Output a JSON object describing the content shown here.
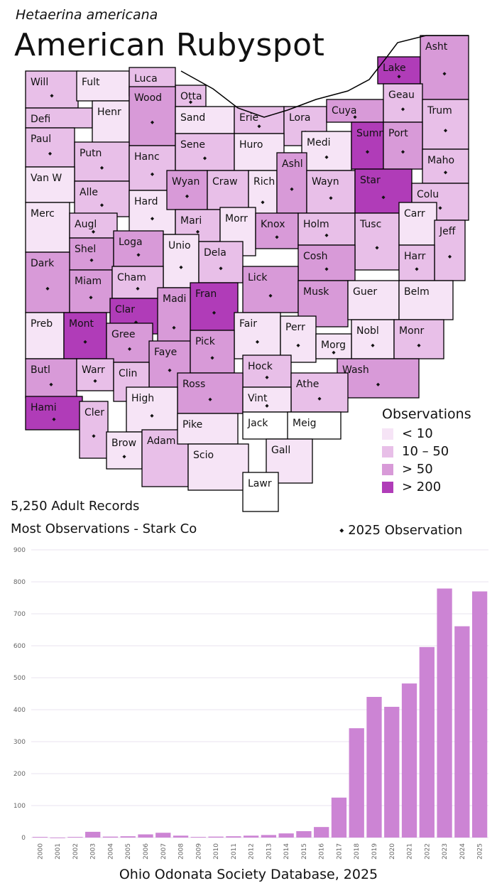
{
  "header": {
    "scientific_name": "Hetaerina americana",
    "common_name": "American Rubyspot"
  },
  "legend": {
    "title": "Observations",
    "items": [
      {
        "label": "< 10",
        "color": "#f6e4f6"
      },
      {
        "label": "10 – 50",
        "color": "#e8bfe8"
      },
      {
        "label": "> 50",
        "color": "#d89ad8"
      },
      {
        "label": "> 200",
        "color": "#b03cb8"
      }
    ]
  },
  "marker_legend": "⬩ 2025  Observation",
  "stats": {
    "records": "5,250 Adult Records",
    "most": "Most Observations - Stark Co"
  },
  "map": {
    "counties": [
      {
        "name": "Will",
        "cls": 2,
        "dot": true
      },
      {
        "name": "Fult",
        "cls": 1,
        "dot": false
      },
      {
        "name": "Luca",
        "cls": 2,
        "dot": true
      },
      {
        "name": "Otta",
        "cls": 2,
        "dot": true
      },
      {
        "name": "Lake",
        "cls": 4,
        "dot": true
      },
      {
        "name": "Asht",
        "cls": 3,
        "dot": true
      },
      {
        "name": "Defi",
        "cls": 2,
        "dot": false
      },
      {
        "name": "Henr",
        "cls": 1,
        "dot": false
      },
      {
        "name": "Wood",
        "cls": 3,
        "dot": true
      },
      {
        "name": "Sand",
        "cls": 1,
        "dot": false
      },
      {
        "name": "Erie",
        "cls": 2,
        "dot": true
      },
      {
        "name": "Lora",
        "cls": 2,
        "dot": true
      },
      {
        "name": "Cuya",
        "cls": 3,
        "dot": true
      },
      {
        "name": "Geau",
        "cls": 2,
        "dot": true
      },
      {
        "name": "Trum",
        "cls": 2,
        "dot": true
      },
      {
        "name": "Paul",
        "cls": 2,
        "dot": true
      },
      {
        "name": "Putn",
        "cls": 2,
        "dot": true
      },
      {
        "name": "Hanc",
        "cls": 2,
        "dot": true
      },
      {
        "name": "Sene",
        "cls": 2,
        "dot": true
      },
      {
        "name": "Huro",
        "cls": 1,
        "dot": false
      },
      {
        "name": "Medi",
        "cls": 1,
        "dot": true
      },
      {
        "name": "Summ",
        "cls": 4,
        "dot": true
      },
      {
        "name": "Port",
        "cls": 3,
        "dot": true
      },
      {
        "name": "Maho",
        "cls": 2,
        "dot": true
      },
      {
        "name": "Van W",
        "cls": 1,
        "dot": false
      },
      {
        "name": "Alle",
        "cls": 2,
        "dot": true
      },
      {
        "name": "Hard",
        "cls": 1,
        "dot": true
      },
      {
        "name": "Wyan",
        "cls": 3,
        "dot": true
      },
      {
        "name": "Craw",
        "cls": 2,
        "dot": false
      },
      {
        "name": "Rich",
        "cls": 1,
        "dot": true
      },
      {
        "name": "Ashl",
        "cls": 3,
        "dot": true
      },
      {
        "name": "Wayn",
        "cls": 2,
        "dot": true
      },
      {
        "name": "Star",
        "cls": 4,
        "dot": true
      },
      {
        "name": "Colu",
        "cls": 2,
        "dot": true
      },
      {
        "name": "Merc",
        "cls": 1,
        "dot": false
      },
      {
        "name": "Augl",
        "cls": 2,
        "dot": true
      },
      {
        "name": "Mari",
        "cls": 2,
        "dot": true
      },
      {
        "name": "Morr",
        "cls": 1,
        "dot": false
      },
      {
        "name": "Knox",
        "cls": 3,
        "dot": true
      },
      {
        "name": "Holm",
        "cls": 2,
        "dot": true
      },
      {
        "name": "Tusc",
        "cls": 2,
        "dot": true
      },
      {
        "name": "Carr",
        "cls": 1,
        "dot": false
      },
      {
        "name": "Jeff",
        "cls": 2,
        "dot": true
      },
      {
        "name": "Shel",
        "cls": 3,
        "dot": true
      },
      {
        "name": "Loga",
        "cls": 3,
        "dot": true
      },
      {
        "name": "Unio",
        "cls": 1,
        "dot": true
      },
      {
        "name": "Dela",
        "cls": 2,
        "dot": true
      },
      {
        "name": "Cosh",
        "cls": 3,
        "dot": true
      },
      {
        "name": "Harr",
        "cls": 2,
        "dot": true
      },
      {
        "name": "Dark",
        "cls": 3,
        "dot": true
      },
      {
        "name": "Miam",
        "cls": 3,
        "dot": true
      },
      {
        "name": "Cham",
        "cls": 2,
        "dot": true
      },
      {
        "name": "Lick",
        "cls": 3,
        "dot": true
      },
      {
        "name": "Musk",
        "cls": 3,
        "dot": false
      },
      {
        "name": "Guer",
        "cls": 1,
        "dot": false
      },
      {
        "name": "Belm",
        "cls": 1,
        "dot": false
      },
      {
        "name": "Clar",
        "cls": 4,
        "dot": true
      },
      {
        "name": "Fran",
        "cls": 4,
        "dot": true
      },
      {
        "name": "Preb",
        "cls": 1,
        "dot": false
      },
      {
        "name": "Mont",
        "cls": 4,
        "dot": true
      },
      {
        "name": "Madi",
        "cls": 3,
        "dot": true
      },
      {
        "name": "Fair",
        "cls": 1,
        "dot": true
      },
      {
        "name": "Perr",
        "cls": 1,
        "dot": true
      },
      {
        "name": "Nobl",
        "cls": 1,
        "dot": true
      },
      {
        "name": "Monr",
        "cls": 2,
        "dot": true
      },
      {
        "name": "Gree",
        "cls": 3,
        "dot": true
      },
      {
        "name": "Faye",
        "cls": 3,
        "dot": true
      },
      {
        "name": "Pick",
        "cls": 3,
        "dot": true
      },
      {
        "name": "Morg",
        "cls": 1,
        "dot": true
      },
      {
        "name": "Butl",
        "cls": 3,
        "dot": true
      },
      {
        "name": "Warr",
        "cls": 2,
        "dot": true
      },
      {
        "name": "Clin",
        "cls": 2,
        "dot": false
      },
      {
        "name": "Hock",
        "cls": 2,
        "dot": true
      },
      {
        "name": "Wash",
        "cls": 3,
        "dot": true
      },
      {
        "name": "Ross",
        "cls": 3,
        "dot": true
      },
      {
        "name": "Athe",
        "cls": 2,
        "dot": true
      },
      {
        "name": "Hami",
        "cls": 4,
        "dot": true
      },
      {
        "name": "Cler",
        "cls": 2,
        "dot": true
      },
      {
        "name": "High",
        "cls": 1,
        "dot": true
      },
      {
        "name": "Vint",
        "cls": 1,
        "dot": true
      },
      {
        "name": "Jack",
        "cls": 0,
        "dot": false
      },
      {
        "name": "Meig",
        "cls": 0,
        "dot": false
      },
      {
        "name": "Brow",
        "cls": 1,
        "dot": true
      },
      {
        "name": "Adam",
        "cls": 2,
        "dot": false
      },
      {
        "name": "Pike",
        "cls": 1,
        "dot": false
      },
      {
        "name": "Scio",
        "cls": 1,
        "dot": false
      },
      {
        "name": "Gall",
        "cls": 1,
        "dot": false
      },
      {
        "name": "Lawr",
        "cls": 0,
        "dot": false
      }
    ]
  },
  "chart_data": {
    "type": "bar",
    "categories": [
      "2000",
      "2001",
      "2002",
      "2003",
      "2004",
      "2005",
      "2006",
      "2007",
      "2008",
      "2009",
      "2010",
      "2011",
      "2012",
      "2013",
      "2014",
      "2015",
      "2016",
      "2017",
      "2018",
      "2019",
      "2020",
      "2021",
      "2022",
      "2023",
      "2024",
      "2025"
    ],
    "values": [
      2,
      0,
      2,
      18,
      3,
      4,
      10,
      15,
      6,
      2,
      3,
      4,
      6,
      8,
      13,
      20,
      33,
      125,
      342,
      440,
      409,
      482,
      596,
      779,
      661,
      770
    ],
    "ylim": [
      0,
      900
    ],
    "yticks": [
      0,
      100,
      200,
      300,
      400,
      500,
      600,
      700,
      800,
      900
    ],
    "bar_color": "#cc84d4",
    "grid": true,
    "xlabel": "",
    "ylabel": ""
  },
  "source": "Ohio Odonata Society Database, 2025"
}
